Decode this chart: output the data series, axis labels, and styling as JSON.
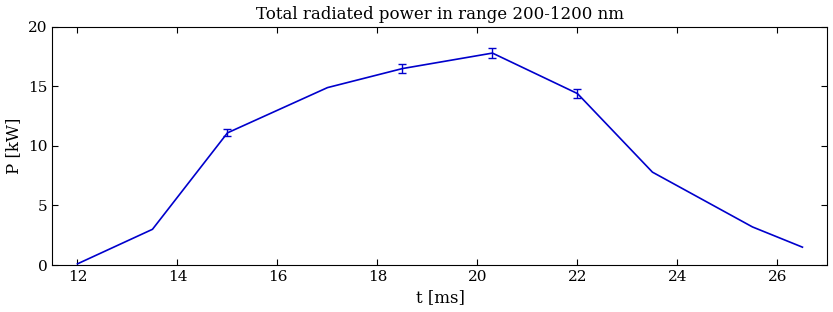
{
  "title": "Total radiated power in range 200-1200 nm",
  "xlabel": "t [ms]",
  "ylabel": "P [kW]",
  "x": [
    12.0,
    13.5,
    15.0,
    17.0,
    18.5,
    20.3,
    22.0,
    23.5,
    25.5,
    26.5
  ],
  "y": [
    0.1,
    3.0,
    11.1,
    14.9,
    16.5,
    17.8,
    14.4,
    7.8,
    3.2,
    1.5
  ],
  "yerr": [
    0.0,
    0.0,
    0.3,
    0.0,
    0.35,
    0.42,
    0.35,
    0.0,
    0.0,
    0.0
  ],
  "xlim": [
    11.5,
    27.0
  ],
  "ylim": [
    0,
    20
  ],
  "xticks": [
    12,
    14,
    16,
    18,
    20,
    22,
    24,
    26
  ],
  "yticks": [
    0,
    5,
    10,
    15,
    20
  ],
  "line_color": "#0000cc",
  "bg_color": "#ffffff",
  "figsize": [
    8.33,
    3.12
  ],
  "dpi": 100,
  "title_fontsize": 12,
  "label_fontsize": 12,
  "tick_fontsize": 11
}
